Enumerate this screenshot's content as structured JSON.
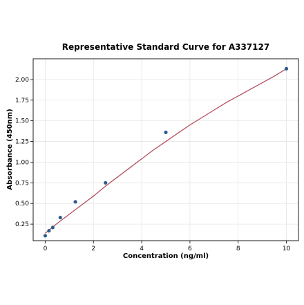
{
  "chart_data": {
    "type": "scatter",
    "title": "Representative Standard Curve for A337127",
    "xlabel": "Concentration (ng/ml)",
    "ylabel": "Absorbance (450nm)",
    "xlim": [
      -0.5,
      10.5
    ],
    "ylim": [
      0.05,
      2.25
    ],
    "x_ticks": [
      0,
      2,
      4,
      6,
      8,
      10
    ],
    "y_ticks": [
      0.25,
      0.5,
      0.75,
      1.0,
      1.25,
      1.5,
      1.75,
      2.0
    ],
    "x_tick_labels": [
      "0",
      "2",
      "4",
      "6",
      "8",
      "10"
    ],
    "y_tick_labels": [
      "0.25",
      "0.50",
      "0.75",
      "1.00",
      "1.25",
      "1.50",
      "1.75",
      "2.00"
    ],
    "grid": true,
    "series": [
      {
        "kind": "points",
        "x": [
          0,
          0.156,
          0.313,
          0.625,
          1.25,
          2.5,
          5,
          10
        ],
        "y": [
          0.11,
          0.17,
          0.21,
          0.33,
          0.52,
          0.75,
          1.36,
          2.13
        ],
        "color": "#2e5d8c"
      },
      {
        "kind": "fit_curve",
        "x": [
          0,
          0.5,
          1,
          1.5,
          2,
          2.5,
          3,
          3.5,
          4,
          4.5,
          5,
          5.5,
          6,
          6.5,
          7,
          7.5,
          8,
          8.5,
          9,
          9.5,
          10
        ],
        "y": [
          0.14,
          0.26,
          0.37,
          0.48,
          0.59,
          0.71,
          0.82,
          0.93,
          1.04,
          1.15,
          1.25,
          1.35,
          1.45,
          1.54,
          1.63,
          1.72,
          1.8,
          1.88,
          1.96,
          2.04,
          2.13
        ],
        "color": "#b34f5f"
      }
    ]
  }
}
